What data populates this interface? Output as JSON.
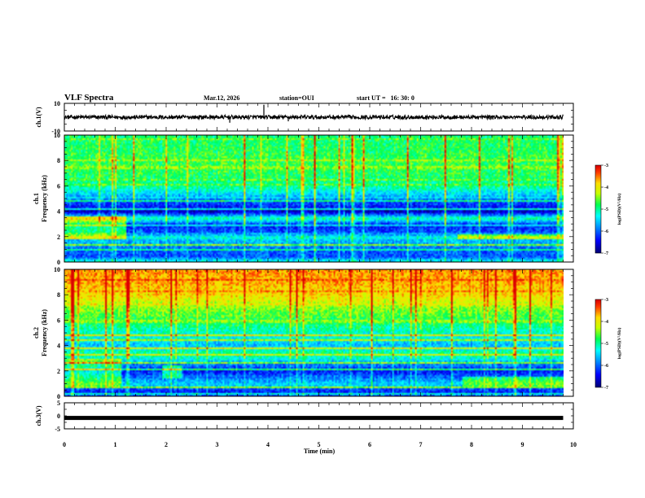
{
  "header": {
    "title": "VLF Spectra",
    "date": "Mar.12, 2026",
    "station": "station=OUI",
    "start": "start UT =   16: 30: 0"
  },
  "chart_data": [
    {
      "type": "line",
      "id": "ch1-waveform",
      "ylabel": "ch.1(V)",
      "ylim": [
        -10,
        10
      ],
      "yticks": [
        "10",
        "-10"
      ],
      "xlim": [
        0,
        10
      ],
      "x_end": 9.8,
      "baseline": 0,
      "noise_amplitude": 1.5,
      "spikes": [
        {
          "x": 3.92,
          "y": 9
        },
        {
          "x": 3.25,
          "y": -4
        },
        {
          "x": 4.4,
          "y": -3
        }
      ]
    },
    {
      "type": "heatmap",
      "id": "ch1-spectrogram",
      "ylabel_top": "ch.1",
      "ylabel": "Frequency (kHz)",
      "ylim": [
        0,
        10
      ],
      "xlim": [
        0,
        10
      ],
      "x_end": 9.8,
      "yticks": [
        "0",
        "2",
        "4",
        "6",
        "8",
        "10"
      ],
      "colorbar_label": "log(PSD)(V²/Hz)",
      "colorbar_ticks": [
        "-3",
        "-4",
        "-5",
        "-6",
        "-7"
      ],
      "clim": [
        -7,
        -3
      ],
      "profile_khz": [
        0,
        0.5,
        1,
        1.5,
        2,
        2.5,
        3,
        3.5,
        4,
        4.5,
        5,
        5.5,
        6,
        7,
        8,
        9,
        10
      ],
      "profile_log_psd": [
        -5.2,
        -6.0,
        -6.1,
        -5.8,
        -5.3,
        -6.2,
        -6.3,
        -5.0,
        -6.7,
        -6.2,
        -5.9,
        -5.4,
        -5.0,
        -4.8,
        -4.7,
        -4.8,
        -4.9
      ]
    },
    {
      "type": "heatmap",
      "id": "ch2-spectrogram",
      "ylabel_top": "ch.2",
      "ylabel": "Frequency (kHz)",
      "ylim": [
        0,
        10
      ],
      "xlim": [
        0,
        10
      ],
      "x_end": 9.8,
      "yticks": [
        "0",
        "2",
        "4",
        "6",
        "8",
        "10"
      ],
      "colorbar_label": "log(PSD)(V²/Hz)",
      "colorbar_ticks": [
        "-3",
        "-4",
        "-5",
        "-6",
        "-7"
      ],
      "clim": [
        -7,
        -3
      ],
      "profile_khz": [
        0,
        0.5,
        1,
        1.5,
        2,
        2.5,
        3,
        3.5,
        4,
        4.5,
        5,
        5.5,
        6,
        7,
        8,
        9,
        10
      ],
      "profile_log_psd": [
        -6.0,
        -6.3,
        -5.5,
        -5.9,
        -6.3,
        -6.0,
        -5.2,
        -5.0,
        -5.6,
        -5.4,
        -5.2,
        -5.0,
        -4.8,
        -4.4,
        -3.9,
        -3.7,
        -3.6
      ]
    },
    {
      "type": "line",
      "id": "ch3-waveform",
      "ylabel": "ch.3(V)",
      "ylim": [
        -5,
        5
      ],
      "yticks": [
        "5",
        "0",
        "-5"
      ],
      "xlim": [
        0,
        10
      ],
      "x_end": 9.8,
      "baseline": -0.8,
      "noise_amplitude": 0
    }
  ],
  "xaxis": {
    "label": "Time (min)",
    "ticks": [
      "0",
      "1",
      "2",
      "3",
      "4",
      "5",
      "6",
      "7",
      "8",
      "9",
      "10"
    ]
  }
}
